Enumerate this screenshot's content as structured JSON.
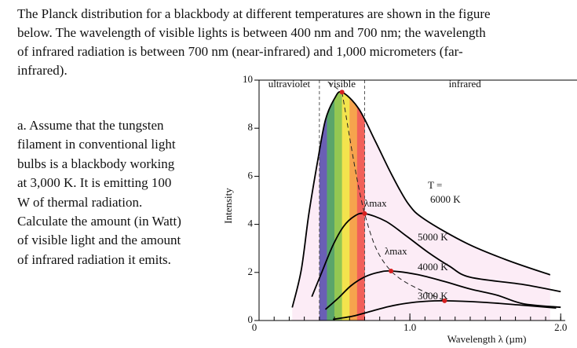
{
  "intro_lines": [
    "The Planck distribution for a blackbody at different temperatures are shown in the figure",
    "below. The wavelength of visible lights is between 400 nm and 700 nm; the wavelength",
    "of infrared radiation is between 700 nm (near-infrared) and 1,000 micrometers (far-",
    "infrared)."
  ],
  "question_lines": [
    "a. Assume that the tungsten",
    "filament in conventional light",
    "bulbs is a blackbody working",
    "at 3,000 K. It is emitting 100",
    "W of thermal radiation.",
    "Calculate the amount (in Watt)",
    "of visible light and the amount",
    "of infrared radiation it emits."
  ],
  "chart_data": {
    "type": "line",
    "x_label": "Wavelength λ (µm)",
    "y_label": "Intensity",
    "xlim": [
      0,
      2.03
    ],
    "ylim": [
      0,
      10
    ],
    "xticks": [
      0,
      {
        "value": 1,
        "label": "1.0"
      },
      {
        "value": 2,
        "label": "2.0"
      }
    ],
    "yticks": [
      0,
      2,
      4,
      6,
      8,
      10
    ],
    "region_labels": [
      "ultraviolet",
      "visible",
      "infrared"
    ],
    "visible_range": [
      0.4,
      0.7
    ],
    "temperature_label": "T =",
    "peak_label": "λmax",
    "series": [
      {
        "name": "6000 K",
        "color": "#000000",
        "x": [
          0.22,
          0.28,
          0.33,
          0.39,
          0.44,
          0.5,
          0.55,
          0.66,
          0.77,
          0.88,
          0.99,
          1.1,
          1.38,
          1.65,
          1.93
        ],
        "values": [
          0.54,
          2.11,
          4.43,
          6.69,
          8.34,
          9.23,
          9.5,
          8.82,
          7.47,
          6.06,
          4.85,
          4.2,
          3.2,
          2.5,
          1.9
        ]
      },
      {
        "name": "5000 K",
        "color": "#000000",
        "x": [
          0.35,
          0.42,
          0.49,
          0.56,
          0.63,
          0.7,
          0.84,
          0.98,
          1.12,
          1.26,
          1.4,
          1.75,
          2.0
        ],
        "values": [
          0.99,
          2.07,
          3.13,
          3.91,
          4.33,
          4.45,
          4.13,
          3.5,
          2.84,
          2.27,
          1.8,
          1.5,
          1.2
        ]
      },
      {
        "name": "4000 K",
        "color": "#000000",
        "x": [
          0.44,
          0.53,
          0.61,
          0.7,
          0.79,
          0.875,
          1.05,
          1.23,
          1.4,
          1.58,
          1.75,
          2.0
        ],
        "values": [
          0.46,
          0.96,
          1.45,
          1.81,
          2.0,
          2.06,
          1.91,
          1.62,
          1.31,
          1.05,
          0.7,
          0.55
        ]
      },
      {
        "name": "3000 K",
        "color": "#000000",
        "x": [
          0.49,
          0.62,
          0.74,
          0.86,
          0.98,
          1.11,
          1.23,
          1.48,
          1.72,
          1.97
        ],
        "values": [
          0.05,
          0.18,
          0.38,
          0.58,
          0.72,
          0.8,
          0.82,
          0.76,
          0.65,
          0.52
        ]
      }
    ]
  }
}
